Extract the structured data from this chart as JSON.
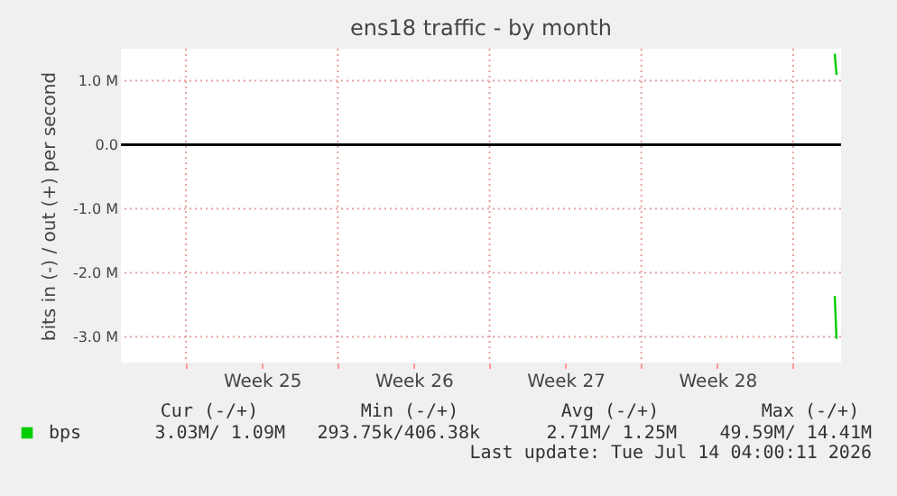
{
  "chart_data": {
    "type": "line",
    "title": "ens18 traffic - by month",
    "ylabel": "bits in (-) / out (+) per second",
    "xlim": [
      "2026-06-12T00:00",
      "2026-07-15T05:00"
    ],
    "xticks": [
      {
        "value": "2026-06-15",
        "label": null
      },
      {
        "value": "2026-06-18T12:00",
        "label": "Week 25"
      },
      {
        "value": "2026-06-22",
        "label": null
      },
      {
        "value": "2026-06-25T12:00",
        "label": "Week 26"
      },
      {
        "value": "2026-06-29",
        "label": null
      },
      {
        "value": "2026-07-02T12:00",
        "label": "Week 27"
      },
      {
        "value": "2026-07-06",
        "label": null
      },
      {
        "value": "2026-07-09T12:00",
        "label": "Week 28"
      },
      {
        "value": "2026-07-13",
        "label": null
      }
    ],
    "ylim": [
      -3.4,
      1.5
    ],
    "yticks": [
      {
        "value": -3,
        "label": "-3.0 M"
      },
      {
        "value": -2,
        "label": "-2.0 M"
      },
      {
        "value": -1,
        "label": "-1.0 M"
      },
      {
        "value": 0,
        "label": "0.0"
      },
      {
        "value": 1,
        "label": "1.0 M"
      }
    ],
    "series": [
      {
        "name": "bps",
        "color": "#00cc00",
        "x": [
          "2026-07-14T22:00",
          "2026-07-15T00:00"
        ],
        "values": [
          1.42,
          1.09
        ]
      },
      {
        "color": "#00cc00",
        "x": [
          "2026-07-14T22:00",
          "2026-07-15T00:00"
        ],
        "values": [
          -2.36,
          -3.03
        ]
      }
    ],
    "ref_lines": [
      {
        "axis": "y",
        "value": 0,
        "color": "#000000"
      }
    ],
    "grid": true,
    "legend": "bottom",
    "annotations": [
      "Cur (-/+)",
      "Min (-/+)",
      "Avg (-/+)",
      "Max (-/+)",
      "3.03M/   1.09M",
      "293.75k/406.38k",
      "2.71M/   1.25M",
      "49.59M/ 14.41M",
      "Last update: Tue Jul 14 04:00:11 2026"
    ]
  }
}
